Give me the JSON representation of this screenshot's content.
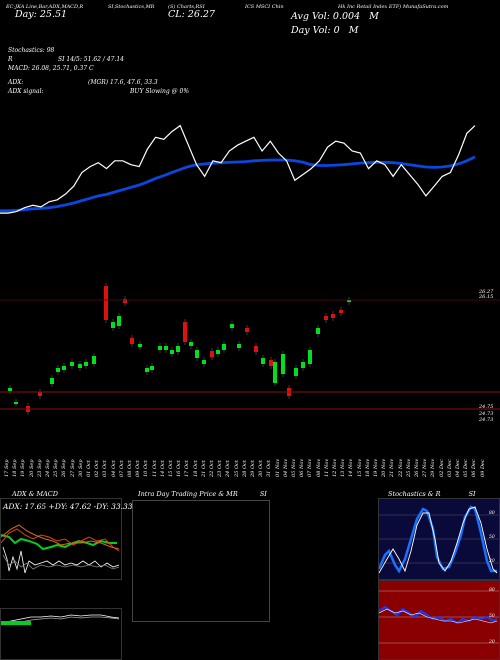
{
  "header": {
    "items": [
      "EC-JKA Line,Bar,ADX,MACD,R",
      "SI,Stochastics,MR",
      "(S) Charts,RSI",
      "ICS MSCI Chin",
      "Hk Inc Retail Index ETF) MunafaSutra.com"
    ],
    "day_range": "Day: 25.51",
    "close_label": "CL: 26.27",
    "avg_vol": "Avg Vol: 0.004",
    "avg_vol_unit": "M",
    "day_vol": "Day Vol: 0",
    "day_vol_unit": "M"
  },
  "indicators": {
    "stochastics": "Stochastics: 98",
    "r_label": "R",
    "si": "SI 14/5: 51.62 / 47.14",
    "macd": "MACD: 26.08, 25.71, 0.37 C",
    "adx": "ADX:",
    "mgr": "(MGR) 17.6, 47.6, 33.3",
    "adx_signal": "ADX signal:",
    "buy_signal": "BUY Slowing @ 0%"
  },
  "price_labels": {
    "upper1": "26.27",
    "upper2": "26.15",
    "lower1": "24.75",
    "lower2": "24.73",
    "lower3": "24.73"
  },
  "dates": [
    "17 Sep",
    "19 Sep",
    "23 Sep",
    "25 Sep",
    "27 Sep",
    "01 Oct",
    "03 Oct",
    "07 Oct",
    "09 Oct",
    "11 Oct",
    "15 Oct",
    "17 Oct",
    "21 Oct",
    "23 Oct",
    "25 Oct",
    "29 Oct",
    "31 Oct",
    "04 Nov",
    "06 Nov",
    "08 Nov",
    "12 Nov",
    "14 Nov",
    "18 Nov",
    "20 Nov",
    "22 Nov",
    "26 Nov",
    "29 Nov",
    "03 Dec",
    "05 Dec",
    "09 Dec"
  ],
  "dates_offset": [
    "18 Sep",
    "20 Sep",
    "24 Sep",
    "26 Sep",
    "30 Sep",
    "02 Oct",
    "04 Oct",
    "08 Oct",
    "10 Oct",
    "14 Oct",
    "16 Oct",
    "18 Oct",
    "22 Oct",
    "24 Oct",
    "28 Oct",
    "30 Oct",
    "01 Nov",
    "05 Nov",
    "07 Nov",
    "11 Nov",
    "13 Nov",
    "15 Nov",
    "19 Nov",
    "21 Nov",
    "25 Nov",
    "27 Nov",
    "02 Dec",
    "04 Dec",
    "06 Dec"
  ],
  "panels": {
    "adx_title": "ADX  & MACD",
    "adx_values": "ADX: 17.65  +DY: 47.62  -DY: 33.33",
    "intra_title": "Intra  Day Trading Price  & MR",
    "intra_si": "SI",
    "stoch_title": "Stochastics & R",
    "stoch_si": "SI",
    "stoch_levels": [
      "80",
      "50",
      "20"
    ],
    "rsi_levels": [
      "80",
      "50",
      "20"
    ]
  },
  "colors": {
    "price_line": "#ffffff",
    "ma_line": "#0a46e0",
    "candle_up": "#00e020",
    "candle_down": "#e01010",
    "level_line": "#8a1010"
  },
  "chart_data": {
    "type": "line",
    "x": [
      "17 Sep",
      "18 Sep",
      "19 Sep",
      "20 Sep",
      "23 Sep",
      "24 Sep",
      "25 Sep",
      "26 Sep",
      "27 Sep",
      "30 Sep",
      "01 Oct",
      "02 Oct",
      "03 Oct",
      "04 Oct",
      "07 Oct",
      "08 Oct",
      "09 Oct",
      "10 Oct",
      "11 Oct",
      "14 Oct",
      "15 Oct",
      "16 Oct",
      "17 Oct",
      "18 Oct",
      "21 Oct",
      "22 Oct",
      "23 Oct",
      "24 Oct",
      "25 Oct",
      "28 Oct",
      "29 Oct",
      "30 Oct",
      "31 Oct",
      "01 Nov",
      "04 Nov",
      "05 Nov",
      "06 Nov",
      "07 Nov",
      "08 Nov",
      "11 Nov",
      "12 Nov",
      "13 Nov",
      "14 Nov",
      "15 Nov",
      "18 Nov",
      "19 Nov",
      "20 Nov",
      "21 Nov",
      "22 Nov",
      "25 Nov",
      "26 Nov",
      "27 Nov",
      "29 Nov",
      "02 Dec",
      "03 Dec",
      "04 Dec",
      "05 Dec",
      "06 Dec",
      "09 Dec"
    ],
    "series": [
      {
        "values": [
          24.76,
          24.76,
          24.8,
          24.9,
          24.96,
          24.92,
          25.05,
          25.1,
          25.25,
          25.45,
          25.8,
          25.95,
          26.05,
          25.9,
          26.1,
          26.1,
          26.0,
          25.95,
          26.4,
          26.7,
          26.65,
          26.85,
          27.0,
          26.5,
          26.0,
          25.7,
          26.1,
          26.05,
          26.35,
          26.5,
          26.6,
          26.7,
          26.35,
          26.6,
          26.3,
          26.1,
          25.6,
          25.75,
          25.9,
          26.1,
          26.45,
          26.6,
          26.55,
          26.35,
          26.3,
          25.9,
          26.1,
          26.0,
          25.7,
          26.0,
          25.75,
          25.5,
          25.2,
          25.45,
          25.7,
          25.8,
          26.25,
          26.8,
          27.0
        ]
      },
      {
        "values": [
          24.82,
          24.82,
          24.83,
          24.85,
          24.87,
          24.88,
          24.9,
          24.93,
          24.97,
          25.02,
          25.08,
          25.14,
          25.2,
          25.24,
          25.3,
          25.36,
          25.42,
          25.48,
          25.56,
          25.65,
          25.72,
          25.8,
          25.88,
          25.95,
          26.0,
          26.02,
          26.04,
          26.05,
          26.06,
          26.07,
          26.08,
          26.1,
          26.11,
          26.12,
          26.12,
          26.12,
          26.1,
          26.06,
          26.0,
          25.98,
          25.98,
          25.99,
          26.0,
          26.02,
          26.04,
          26.05,
          26.06,
          26.06,
          26.05,
          26.03,
          26.0,
          25.97,
          25.94,
          25.93,
          25.94,
          25.97,
          26.02,
          26.1,
          26.2
        ]
      }
    ],
    "ylim": [
      24.2,
      27.4
    ],
    "grid": false
  }
}
